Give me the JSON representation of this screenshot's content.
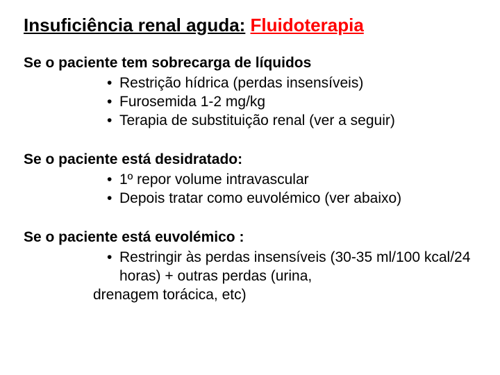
{
  "colors": {
    "title_black": "#000000",
    "title_red": "#ff0000",
    "body_text": "#000000",
    "background": "#ffffff"
  },
  "typography": {
    "family": "Comic Sans MS",
    "title_fontsize_pt": 20,
    "body_fontsize_pt": 16,
    "title_bold": true,
    "heading_bold": true
  },
  "title": {
    "part1": "Insuficiência renal aguda:",
    "part2": "Fluidoterapia"
  },
  "sections": [
    {
      "heading": "Se o paciente tem sobrecarga de líquidos",
      "items": [
        "Restrição hídrica (perdas insensíveis)",
        "Furosemida 1-2 mg/kg",
        "Terapia de substituição renal (ver a seguir)"
      ]
    },
    {
      "heading": "Se o paciente está desidratado:",
      "items": [
        "1º repor volume intravascular",
        "Depois tratar como euvolémico (ver abaixo)"
      ]
    },
    {
      "heading": "Se o paciente está euvolémico :",
      "items": [
        "Restringir  às perdas insensíveis (30-35 ml/100 kcal/24 horas) + outras perdas (urina,"
      ],
      "runon": "drenagem torácica, etc)"
    }
  ]
}
